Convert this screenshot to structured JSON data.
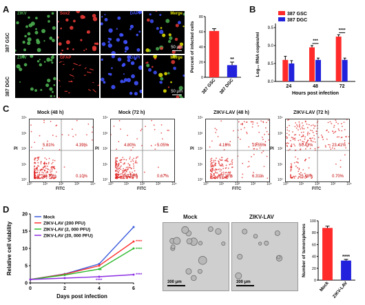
{
  "panels": {
    "a": "A",
    "b": "B",
    "c": "C",
    "d": "D",
    "e": "E"
  },
  "panelA": {
    "row1_label": "387 GSC",
    "row2_label": "387 DGC",
    "row1_channels": [
      "ZIKV",
      "Sox2",
      "DAPI",
      "Merge"
    ],
    "row2_channels": [
      "ZIKV",
      "GFAP",
      "DAPI",
      "Merge"
    ],
    "scalebar1": "50 μm",
    "scalebar2": "50 μm",
    "channel_colors": {
      "ZIKV": "#4caf50",
      "Sox2": "#e53935",
      "GFAP": "#e53935",
      "DAPI": "#3f51ff",
      "Merge": "#e6e600"
    }
  },
  "chart_data": [
    {
      "id": "A-bar",
      "type": "bar",
      "categories": [
        "387 GSC",
        "387 DGC"
      ],
      "values": [
        61,
        16
      ],
      "errors": [
        3,
        4
      ],
      "colors": [
        "#ff2a2a",
        "#2222dd"
      ],
      "ylabel": "Percent of infected cells",
      "ylim": [
        0,
        80
      ],
      "yticks": [
        0,
        20,
        40,
        60,
        80
      ],
      "annotations": [
        {
          "category": "387 DGC",
          "text": "**"
        }
      ]
    },
    {
      "id": "B-bar",
      "type": "bar",
      "categories": [
        "24",
        "48",
        "72"
      ],
      "series": [
        {
          "name": "387 GSC",
          "color": "#ff2a2a",
          "values": [
            8.6,
            8.95,
            9.25
          ],
          "errors": [
            0.1,
            0.05,
            0.05
          ]
        },
        {
          "name": "387 DGC",
          "color": "#2222dd",
          "values": [
            8.5,
            8.6,
            8.6
          ],
          "errors": [
            0.08,
            0.05,
            0.05
          ]
        }
      ],
      "ylabel": "Log₁₀ RNA copies/ml",
      "xlabel": "Hours post infection",
      "ylim": [
        8.0,
        9.5
      ],
      "yticks": [
        8.0,
        8.5,
        9.0,
        9.5
      ],
      "annotations": [
        {
          "category": "48",
          "text": "***"
        },
        {
          "category": "72",
          "text": "****"
        }
      ],
      "legend": "top-left"
    },
    {
      "id": "C-flow",
      "type": "scatter",
      "xlabel": "FITC",
      "ylabel": "PI",
      "xticks": [
        "10⁰",
        "10¹",
        "10²",
        "10³",
        "10⁴"
      ],
      "yticks": [
        "10⁰",
        "10¹",
        "10²",
        "10³",
        "10⁴"
      ],
      "plots": [
        {
          "title": "Mock   (48 h)",
          "ul": "5.81%",
          "ur": "4.39%",
          "ll": "89.70%",
          "lr": "0.10%"
        },
        {
          "title": "Mock   (72 h)",
          "ul": "4.80%",
          "ur": "5.05%",
          "ll": "89.48%",
          "lr": "0.67%"
        },
        {
          "title": "ZIKV-LAV (48 h)",
          "ul": "4.19%",
          "ur": "19.55%",
          "ll": "69.11%",
          "lr": "6.31%"
        },
        {
          "title": "ZIKV-LAV (72 h)",
          "ul": "50.41%",
          "ur": "23.41%",
          "ll": "25.48%",
          "lr": "0.70%"
        }
      ]
    },
    {
      "id": "D-line",
      "type": "line",
      "x": [
        0,
        2,
        4,
        6
      ],
      "series": [
        {
          "name": "Mock",
          "color": "#3b5bdb",
          "values": [
            1,
            2.6,
            5.5,
            16.2
          ]
        },
        {
          "name": "ZIKV-LAV (200 PFU)",
          "color": "#ff3030",
          "values": [
            1,
            2.5,
            5.0,
            12.0
          ]
        },
        {
          "name": "ZIKV-LAV (2, 000 PFU)",
          "color": "#2db82d",
          "values": [
            1,
            2.3,
            4.0,
            10.0
          ]
        },
        {
          "name": "ZIKV-LAV (20, 000 PFU)",
          "color": "#8a2be2",
          "values": [
            1,
            1.4,
            1.8,
            2.4
          ]
        }
      ],
      "xlabel": "Days post  infection",
      "ylabel": "Relative cell viability",
      "xlim": [
        0,
        6
      ],
      "ylim": [
        0,
        20
      ],
      "yticks": [
        0,
        5,
        10,
        15,
        20
      ],
      "xticks": [
        0,
        2,
        4,
        6
      ],
      "annotations": [
        "*",
        "****",
        "****",
        "****",
        "****"
      ],
      "legend": "top-left"
    },
    {
      "id": "E-bar",
      "type": "bar",
      "categories": [
        "Mock",
        "ZIKV-LAV"
      ],
      "values": [
        88,
        33
      ],
      "errors": [
        3,
        2
      ],
      "colors": [
        "#ff2a2a",
        "#2222dd"
      ],
      "ylabel": "Number of tumorspheres",
      "ylim": [
        0,
        100
      ],
      "yticks": [
        0,
        20,
        40,
        60,
        80,
        100
      ],
      "annotations": [
        {
          "category": "ZIKV-LAV",
          "text": "****"
        }
      ]
    }
  ],
  "panelE": {
    "photo1_title": "Mock",
    "photo2_title": "ZIKV-LAV",
    "scalebar1": "300 μm",
    "scalebar2": "300 μm"
  }
}
